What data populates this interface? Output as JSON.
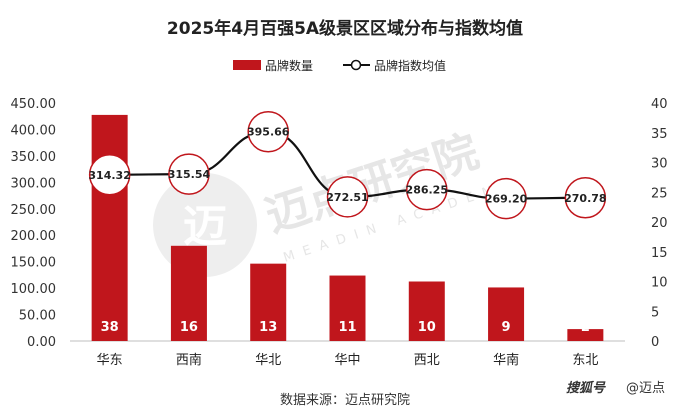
{
  "chart_data": {
    "type": "bar",
    "title": "2025年4月百强5A级景区区域分布与指数均值",
    "categories": [
      "华东",
      "西南",
      "华北",
      "华中",
      "西北",
      "华南",
      "东北"
    ],
    "series": [
      {
        "name": "品牌数量",
        "type": "bar",
        "axis": "right",
        "values": [
          38,
          16,
          13,
          11,
          10,
          9,
          2
        ],
        "color": "#c0161c"
      },
      {
        "name": "品牌指数均值",
        "type": "line",
        "axis": "left",
        "values": [
          314.32,
          315.54,
          395.66,
          272.51,
          286.25,
          269.2,
          270.78
        ],
        "labels": [
          "314.32",
          "315.54",
          "395.66",
          "272.51",
          "286.25",
          "269.20",
          "270.78"
        ],
        "color": "#111111"
      }
    ],
    "y_left": {
      "min": 0,
      "max": 450,
      "step": 50,
      "ticks": [
        "0.00",
        "50.00",
        "100.00",
        "150.00",
        "200.00",
        "250.00",
        "300.00",
        "350.00",
        "400.00",
        "450.00"
      ]
    },
    "y_right": {
      "min": 0,
      "max": 40,
      "step": 5,
      "ticks": [
        "0",
        "5",
        "10",
        "15",
        "20",
        "25",
        "30",
        "35",
        "40"
      ]
    },
    "legend_position": "top-center",
    "grid": false
  },
  "source_text": "数据来源：迈点研究院",
  "watermark": {
    "main": "迈点研究院",
    "sub": "MEADIN ACADEMY",
    "logo_glyph": "迈"
  },
  "credit": {
    "app": "搜狐号",
    "handle": "@迈点"
  }
}
